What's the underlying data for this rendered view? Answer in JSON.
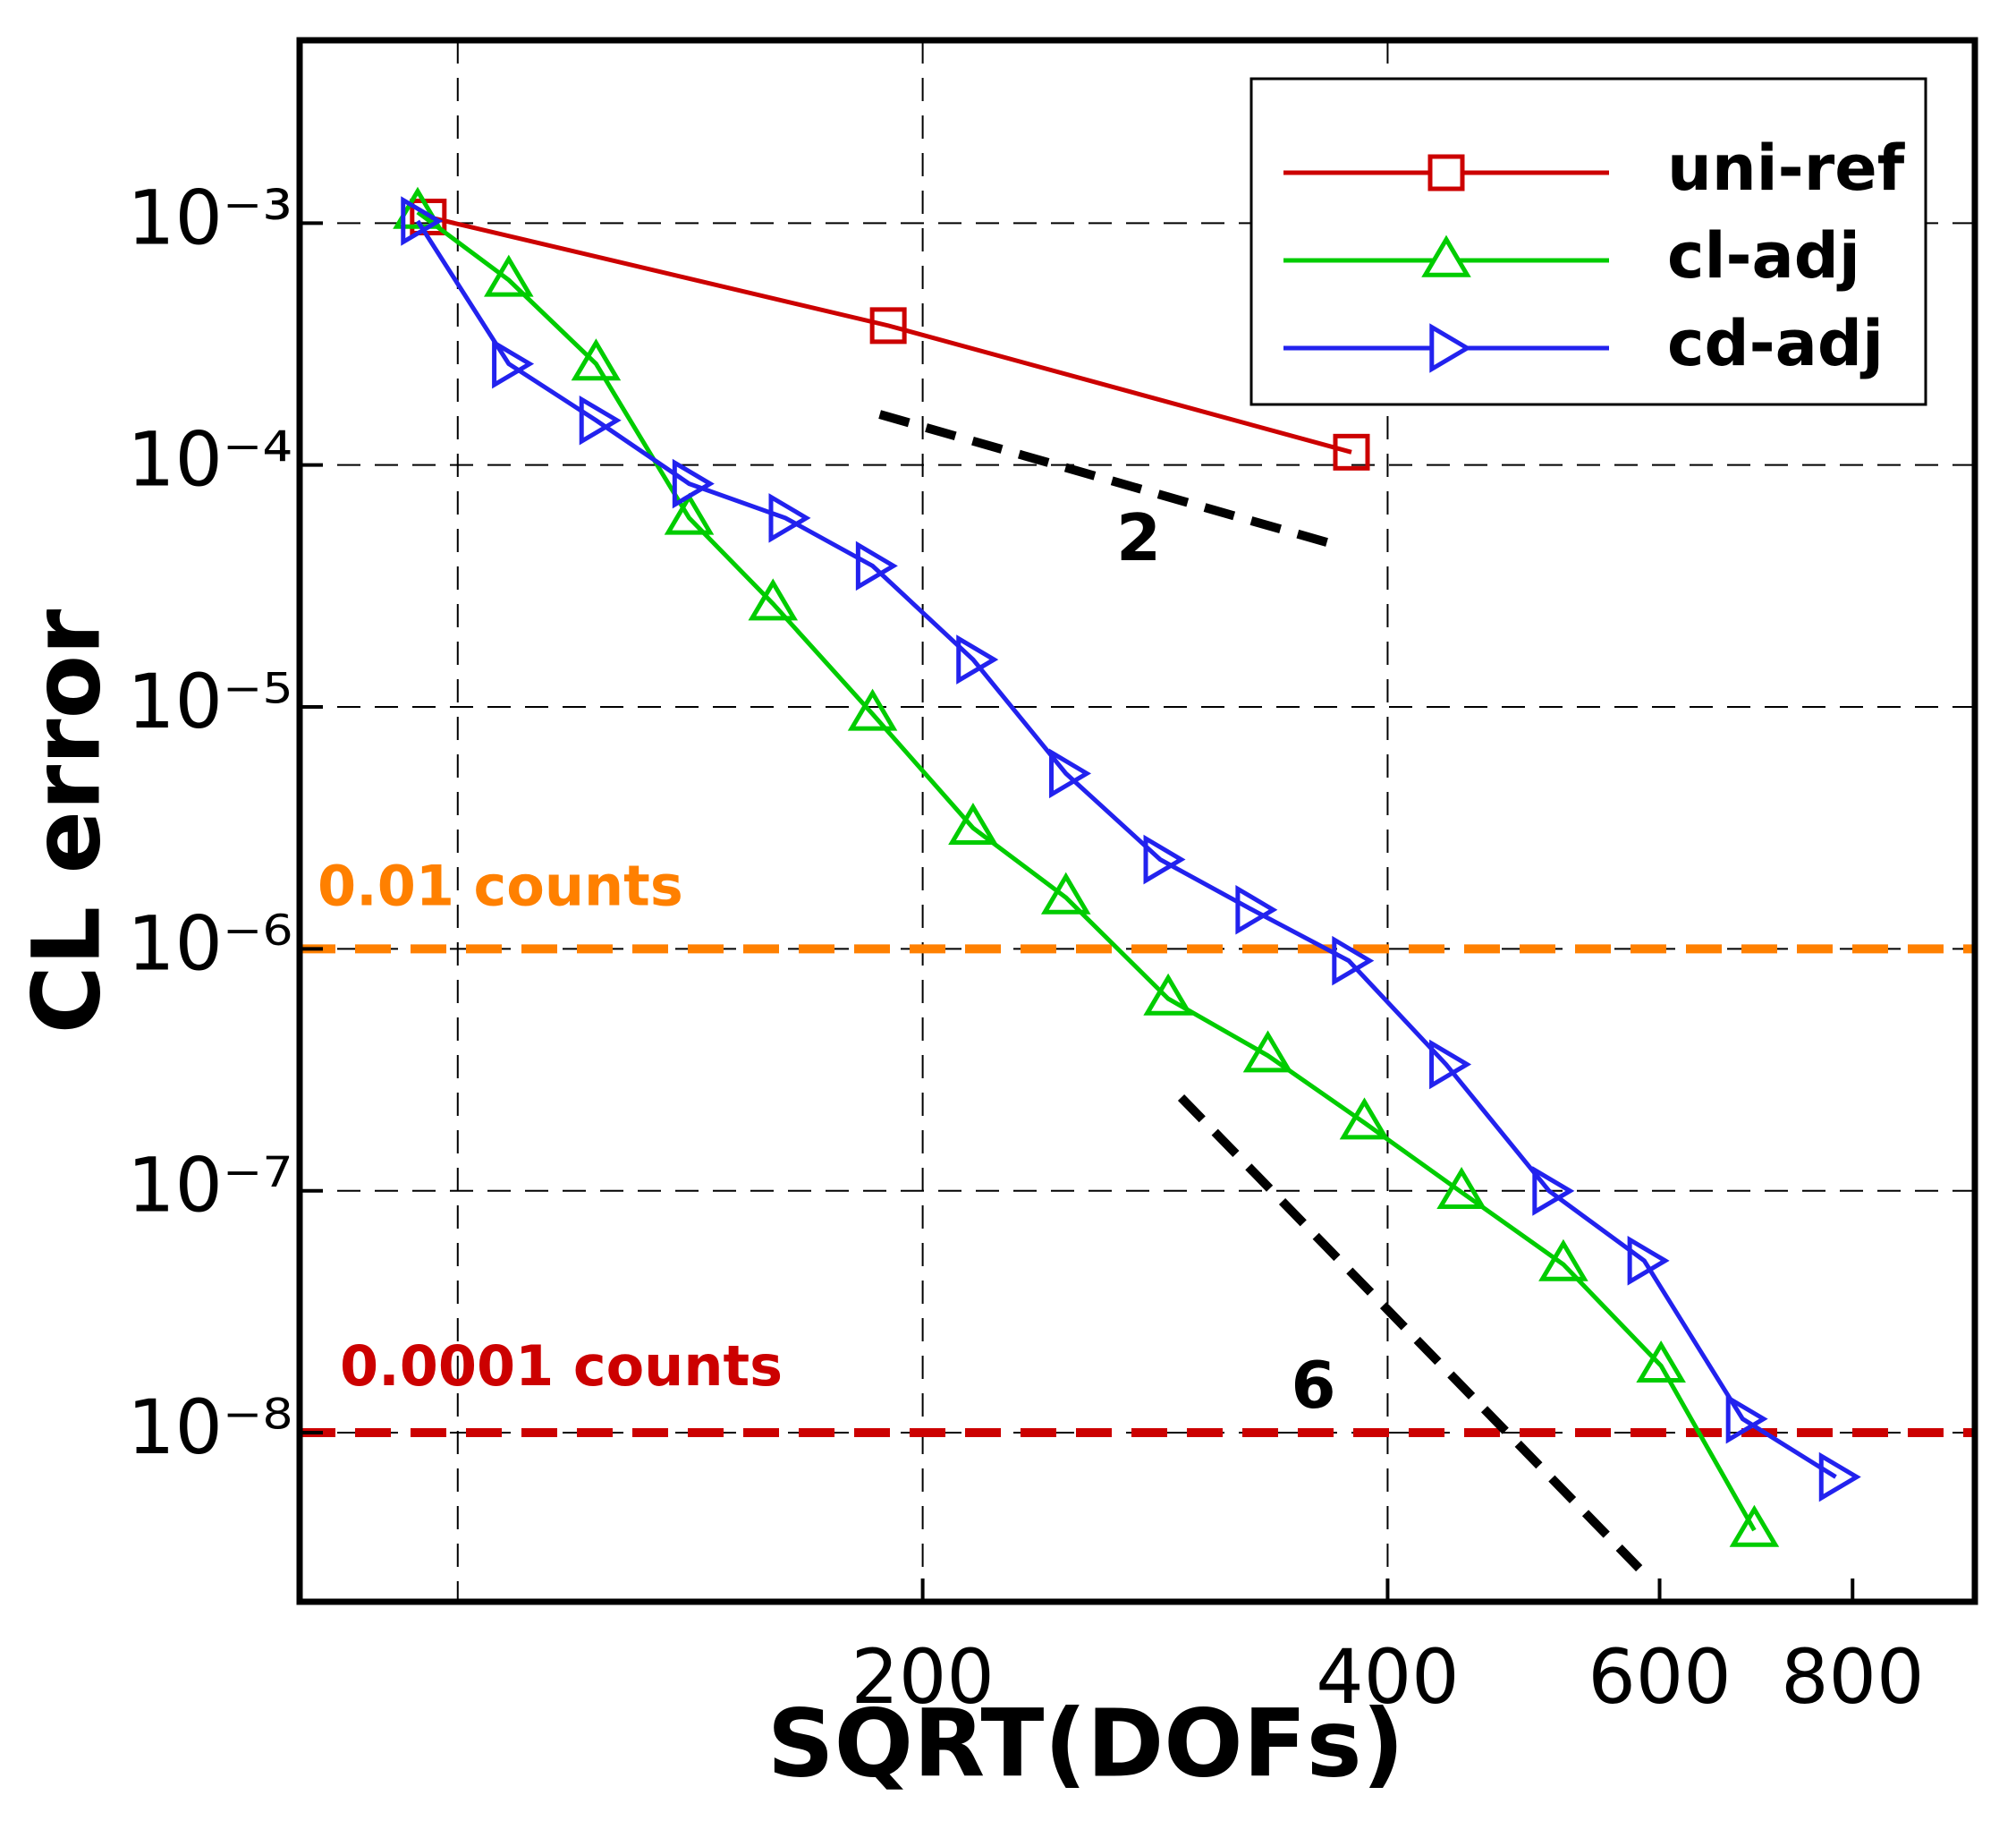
{
  "chart_data": {
    "type": "line",
    "xlabel": "SQRT(DOFs)",
    "ylabel": "CL error",
    "xscale": "log",
    "yscale": "log",
    "xlim": [
      79,
      960
    ],
    "ylim": [
      2e-09,
      0.0057
    ],
    "xticks": [
      200,
      400,
      600,
      800
    ],
    "xgrid": [
      100,
      200,
      400
    ],
    "yticks": [
      {
        "value": 0.001,
        "label": "10⁻³"
      },
      {
        "value": 0.0001,
        "label": "10⁻⁴"
      },
      {
        "value": 1e-05,
        "label": "10⁻⁵"
      },
      {
        "value": 1e-06,
        "label": "10⁻⁶"
      },
      {
        "value": 1e-07,
        "label": "10⁻⁷"
      },
      {
        "value": 1e-08,
        "label": "10⁻⁸"
      }
    ],
    "grid": true,
    "legend": "upper right",
    "series": [
      {
        "name": "uni-ref",
        "color": "#cc0000",
        "marker": "square",
        "x": [
          95.7,
          190,
          379
        ],
        "values": [
          0.00106,
          0.000377,
          0.000113
        ]
      },
      {
        "name": "cl-adj",
        "color": "#00cc00",
        "marker": "triangle-up",
        "x": [
          94.2,
          107.9,
          122.9,
          141.2,
          160.0,
          185.6,
          215.6,
          247.6,
          288.4,
          334.6,
          386.4,
          446.6,
          519.8,
          601.3,
          691.0
        ],
        "values": [
          0.00111,
          0.000582,
          0.000262,
          6.04e-05,
          2.67e-05,
          9.35e-06,
          3.16e-06,
          1.63e-06,
          6.22e-07,
          3.62e-07,
          1.91e-07,
          9.86e-08,
          4.96e-08,
          1.89e-08,
          3.95e-09
        ]
      },
      {
        "name": "cd-adj",
        "color": "#2222ee",
        "marker": "triangle-right",
        "x": [
          94.2,
          107.9,
          122.9,
          141.2,
          163.0,
          185.6,
          215.6,
          247.6,
          285.0,
          326.9,
          377.5,
          436.4,
          508.9,
          586.4,
          679.1,
          780.2
        ],
        "values": [
          0.00102,
          0.000262,
          0.000153,
          8.37e-05,
          6.04e-05,
          3.83e-05,
          1.57e-05,
          5.31e-06,
          2.34e-06,
          1.45e-06,
          8.93e-07,
          3.33e-07,
          9.98e-08,
          5.14e-08,
          1.14e-08,
          6.56e-09
        ]
      }
    ],
    "reference_lines": [
      {
        "label": "2",
        "color": "#000000",
        "x": [
          187.6,
          371.8
        ],
        "y": [
          0.000162,
          4.64e-05
        ]
      },
      {
        "label": "6",
        "color": "#000000",
        "x": [
          294,
          582
        ],
        "y": [
          2.43e-07,
          2.75e-09
        ]
      }
    ],
    "thresholds": [
      {
        "label": "0.01 counts",
        "value": 1e-06,
        "color": "#ff8000"
      },
      {
        "label": "0.0001 counts",
        "value": 1e-08,
        "color": "#cc0000"
      }
    ]
  }
}
